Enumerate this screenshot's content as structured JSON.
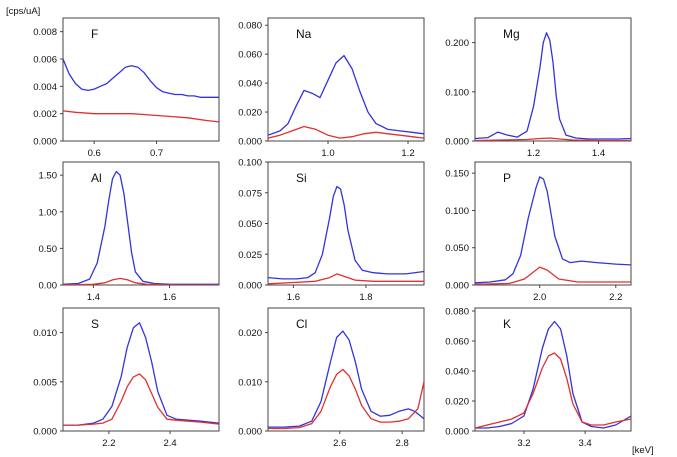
{
  "y_unit_label": "[cps/uA]",
  "x_unit_label": "[keV]",
  "colors": {
    "series_blue": "#3333dd",
    "series_red": "#e03030",
    "frame": "#444444"
  },
  "chart_data": [
    {
      "type": "line",
      "title": "F",
      "xlim": [
        0.55,
        0.8
      ],
      "ylim": [
        0,
        0.009
      ],
      "x_ticks": [
        "0.6",
        "0.7"
      ],
      "x_tick_values": [
        0.6,
        0.7
      ],
      "y_ticks": [
        "0.000",
        "0.002",
        "0.004",
        "0.006",
        "0.008"
      ],
      "y_tick_values": [
        0,
        0.002,
        0.004,
        0.006,
        0.008
      ],
      "series": [
        {
          "color": "blue",
          "x": [
            0.55,
            0.56,
            0.57,
            0.58,
            0.59,
            0.6,
            0.61,
            0.62,
            0.63,
            0.64,
            0.65,
            0.66,
            0.67,
            0.68,
            0.69,
            0.7,
            0.71,
            0.72,
            0.73,
            0.74,
            0.75,
            0.76,
            0.77,
            0.78,
            0.79,
            0.8
          ],
          "y": [
            0.006,
            0.0049,
            0.0042,
            0.0038,
            0.0037,
            0.0038,
            0.004,
            0.0042,
            0.0046,
            0.005,
            0.0054,
            0.0055,
            0.0054,
            0.005,
            0.0044,
            0.0039,
            0.0036,
            0.0035,
            0.0034,
            0.0034,
            0.0033,
            0.0033,
            0.0032,
            0.0032,
            0.0032,
            0.0032
          ]
        },
        {
          "color": "red",
          "x": [
            0.55,
            0.57,
            0.6,
            0.63,
            0.66,
            0.69,
            0.72,
            0.75,
            0.78,
            0.8
          ],
          "y": [
            0.0022,
            0.0021,
            0.002,
            0.002,
            0.002,
            0.0019,
            0.0018,
            0.0017,
            0.0015,
            0.0014
          ]
        }
      ]
    },
    {
      "type": "line",
      "title": "Na",
      "xlim": [
        0.85,
        1.24
      ],
      "ylim": [
        0,
        0.085
      ],
      "x_ticks": [
        "1.0",
        "1.2"
      ],
      "x_tick_values": [
        1.0,
        1.2
      ],
      "y_ticks": [
        "0.000",
        "0.020",
        "0.040",
        "0.060",
        "0.080"
      ],
      "y_tick_values": [
        0,
        0.02,
        0.04,
        0.06,
        0.08
      ],
      "series": [
        {
          "color": "blue",
          "x": [
            0.85,
            0.88,
            0.9,
            0.92,
            0.94,
            0.96,
            0.98,
            1.0,
            1.02,
            1.04,
            1.06,
            1.08,
            1.1,
            1.12,
            1.15,
            1.18,
            1.21,
            1.24
          ],
          "y": [
            0.004,
            0.007,
            0.012,
            0.024,
            0.035,
            0.033,
            0.03,
            0.042,
            0.054,
            0.059,
            0.05,
            0.034,
            0.02,
            0.012,
            0.008,
            0.007,
            0.006,
            0.005
          ]
        },
        {
          "color": "red",
          "x": [
            0.85,
            0.88,
            0.91,
            0.94,
            0.97,
            1.0,
            1.03,
            1.06,
            1.09,
            1.12,
            1.15,
            1.18,
            1.21,
            1.24
          ],
          "y": [
            0.002,
            0.004,
            0.007,
            0.01,
            0.008,
            0.004,
            0.002,
            0.003,
            0.005,
            0.006,
            0.005,
            0.004,
            0.003,
            0.002
          ]
        }
      ]
    },
    {
      "type": "line",
      "title": "Mg",
      "xlim": [
        1.02,
        1.5
      ],
      "ylim": [
        0,
        0.25
      ],
      "x_ticks": [
        "1.2",
        "1.4"
      ],
      "x_tick_values": [
        1.2,
        1.4
      ],
      "y_ticks": [
        "0.000",
        "0.100",
        "0.200"
      ],
      "y_tick_values": [
        0,
        0.1,
        0.2
      ],
      "series": [
        {
          "color": "blue",
          "x": [
            1.02,
            1.06,
            1.09,
            1.12,
            1.15,
            1.18,
            1.2,
            1.22,
            1.23,
            1.24,
            1.25,
            1.26,
            1.27,
            1.28,
            1.3,
            1.33,
            1.37,
            1.42,
            1.46,
            1.5
          ],
          "y": [
            0.005,
            0.007,
            0.018,
            0.012,
            0.008,
            0.02,
            0.07,
            0.15,
            0.2,
            0.22,
            0.205,
            0.16,
            0.09,
            0.045,
            0.012,
            0.006,
            0.004,
            0.004,
            0.004,
            0.005
          ]
        },
        {
          "color": "red",
          "x": [
            1.02,
            1.1,
            1.18,
            1.22,
            1.25,
            1.28,
            1.32,
            1.4,
            1.5
          ],
          "y": [
            0.001,
            0.002,
            0.003,
            0.005,
            0.006,
            0.004,
            0.002,
            0.001,
            0.001
          ]
        }
      ]
    },
    {
      "type": "line",
      "title": "Al",
      "xlim": [
        1.32,
        1.73
      ],
      "ylim": [
        0,
        1.68
      ],
      "x_ticks": [
        "1.4",
        "1.6"
      ],
      "x_tick_values": [
        1.4,
        1.6
      ],
      "y_ticks": [
        "0.00",
        "0.50",
        "1.00",
        "1.50"
      ],
      "y_tick_values": [
        0,
        0.5,
        1.0,
        1.5
      ],
      "series": [
        {
          "color": "blue",
          "x": [
            1.32,
            1.36,
            1.39,
            1.41,
            1.43,
            1.44,
            1.45,
            1.46,
            1.47,
            1.48,
            1.49,
            1.5,
            1.51,
            1.53,
            1.56,
            1.6,
            1.65,
            1.73
          ],
          "y": [
            0.01,
            0.02,
            0.08,
            0.3,
            0.8,
            1.15,
            1.45,
            1.55,
            1.5,
            1.25,
            0.85,
            0.45,
            0.18,
            0.05,
            0.02,
            0.01,
            0.01,
            0.01
          ]
        },
        {
          "color": "red",
          "x": [
            1.32,
            1.4,
            1.43,
            1.45,
            1.47,
            1.49,
            1.51,
            1.54,
            1.6,
            1.73
          ],
          "y": [
            0.0,
            0.01,
            0.03,
            0.07,
            0.09,
            0.07,
            0.03,
            0.01,
            0.0,
            0.0
          ]
        }
      ]
    },
    {
      "type": "line",
      "title": "Si",
      "xlim": [
        1.53,
        1.96
      ],
      "ylim": [
        0,
        0.1
      ],
      "x_ticks": [
        "1.6",
        "1.8"
      ],
      "x_tick_values": [
        1.6,
        1.8
      ],
      "y_ticks": [
        "0.000",
        "0.025",
        "0.050",
        "0.075",
        "0.100"
      ],
      "y_tick_values": [
        0,
        0.025,
        0.05,
        0.075,
        0.1
      ],
      "series": [
        {
          "color": "blue",
          "x": [
            1.53,
            1.57,
            1.61,
            1.64,
            1.66,
            1.68,
            1.7,
            1.71,
            1.72,
            1.73,
            1.74,
            1.75,
            1.77,
            1.79,
            1.82,
            1.86,
            1.91,
            1.96
          ],
          "y": [
            0.006,
            0.005,
            0.005,
            0.006,
            0.01,
            0.025,
            0.055,
            0.072,
            0.08,
            0.078,
            0.065,
            0.045,
            0.02,
            0.012,
            0.01,
            0.009,
            0.009,
            0.011
          ]
        },
        {
          "color": "red",
          "x": [
            1.53,
            1.6,
            1.66,
            1.7,
            1.72,
            1.74,
            1.77,
            1.82,
            1.88,
            1.96
          ],
          "y": [
            0.001,
            0.002,
            0.003,
            0.006,
            0.009,
            0.007,
            0.004,
            0.003,
            0.003,
            0.003
          ]
        }
      ]
    },
    {
      "type": "line",
      "title": "P",
      "xlim": [
        1.83,
        2.24
      ],
      "ylim": [
        0,
        0.165
      ],
      "x_ticks": [
        "2.0",
        "2.2"
      ],
      "x_tick_values": [
        2.0,
        2.2
      ],
      "y_ticks": [
        "0.000",
        "0.050",
        "0.100",
        "0.150"
      ],
      "y_tick_values": [
        0,
        0.05,
        0.1,
        0.15
      ],
      "series": [
        {
          "color": "blue",
          "x": [
            1.83,
            1.87,
            1.91,
            1.93,
            1.95,
            1.97,
            1.99,
            2.0,
            2.01,
            2.02,
            2.03,
            2.04,
            2.06,
            2.08,
            2.11,
            2.15,
            2.2,
            2.24
          ],
          "y": [
            0.003,
            0.004,
            0.007,
            0.015,
            0.04,
            0.09,
            0.13,
            0.145,
            0.142,
            0.125,
            0.095,
            0.065,
            0.035,
            0.03,
            0.032,
            0.03,
            0.028,
            0.027
          ]
        },
        {
          "color": "red",
          "x": [
            1.83,
            1.92,
            1.96,
            1.99,
            2.0,
            2.02,
            2.05,
            2.1,
            2.17,
            2.24
          ],
          "y": [
            0.001,
            0.002,
            0.008,
            0.02,
            0.024,
            0.02,
            0.008,
            0.004,
            0.004,
            0.004
          ]
        }
      ]
    },
    {
      "type": "line",
      "title": "S",
      "xlim": [
        2.05,
        2.56
      ],
      "ylim": [
        0,
        0.0125
      ],
      "x_ticks": [
        "2.2",
        "2.4"
      ],
      "x_tick_values": [
        2.2,
        2.4
      ],
      "y_ticks": [
        "0.000",
        "0.005",
        "0.010"
      ],
      "y_tick_values": [
        0,
        0.005,
        0.01
      ],
      "series": [
        {
          "color": "blue",
          "x": [
            2.05,
            2.1,
            2.15,
            2.18,
            2.21,
            2.24,
            2.26,
            2.28,
            2.3,
            2.32,
            2.34,
            2.36,
            2.39,
            2.42,
            2.46,
            2.5,
            2.56
          ],
          "y": [
            0.0006,
            0.0006,
            0.0008,
            0.0012,
            0.0025,
            0.0055,
            0.0085,
            0.0105,
            0.011,
            0.0095,
            0.007,
            0.004,
            0.0016,
            0.0012,
            0.0011,
            0.001,
            0.0008
          ]
        },
        {
          "color": "red",
          "x": [
            2.05,
            2.1,
            2.15,
            2.18,
            2.21,
            2.24,
            2.26,
            2.28,
            2.3,
            2.32,
            2.34,
            2.36,
            2.39,
            2.42,
            2.46,
            2.5,
            2.56
          ],
          "y": [
            0.0006,
            0.0006,
            0.0007,
            0.0008,
            0.0012,
            0.003,
            0.0045,
            0.0055,
            0.0058,
            0.0052,
            0.0038,
            0.0024,
            0.0012,
            0.0011,
            0.001,
            0.0009,
            0.0007
          ]
        }
      ]
    },
    {
      "type": "line",
      "title": "Cl",
      "xlim": [
        2.37,
        2.87
      ],
      "ylim": [
        0,
        0.025
      ],
      "x_ticks": [
        "2.6",
        "2.8"
      ],
      "x_tick_values": [
        2.6,
        2.8
      ],
      "y_ticks": [
        "0.000",
        "0.010",
        "0.020"
      ],
      "y_tick_values": [
        0,
        0.01,
        0.02
      ],
      "series": [
        {
          "color": "blue",
          "x": [
            2.37,
            2.42,
            2.47,
            2.51,
            2.54,
            2.57,
            2.59,
            2.61,
            2.63,
            2.65,
            2.67,
            2.7,
            2.73,
            2.76,
            2.79,
            2.82,
            2.84,
            2.87
          ],
          "y": [
            0.0008,
            0.0008,
            0.001,
            0.002,
            0.006,
            0.014,
            0.019,
            0.0203,
            0.0185,
            0.014,
            0.0085,
            0.004,
            0.003,
            0.0032,
            0.004,
            0.0045,
            0.004,
            0.0025
          ]
        },
        {
          "color": "red",
          "x": [
            2.37,
            2.42,
            2.47,
            2.51,
            2.54,
            2.57,
            2.59,
            2.61,
            2.63,
            2.65,
            2.67,
            2.7,
            2.73,
            2.76,
            2.79,
            2.82,
            2.85,
            2.87
          ],
          "y": [
            0.0005,
            0.0005,
            0.0007,
            0.0015,
            0.004,
            0.009,
            0.0115,
            0.0125,
            0.0112,
            0.0085,
            0.0052,
            0.0025,
            0.0018,
            0.0018,
            0.002,
            0.0025,
            0.0045,
            0.01
          ]
        }
      ]
    },
    {
      "type": "line",
      "title": "K",
      "xlim": [
        3.04,
        3.55
      ],
      "ylim": [
        0,
        0.082
      ],
      "x_ticks": [
        "3.2",
        "3.4"
      ],
      "x_tick_values": [
        3.2,
        3.4
      ],
      "y_ticks": [
        "0.000",
        "0.020",
        "0.040",
        "0.060",
        "0.080"
      ],
      "y_tick_values": [
        0,
        0.02,
        0.04,
        0.06,
        0.08
      ],
      "series": [
        {
          "color": "blue",
          "x": [
            3.04,
            3.08,
            3.12,
            3.16,
            3.2,
            3.23,
            3.26,
            3.28,
            3.3,
            3.32,
            3.34,
            3.36,
            3.39,
            3.42,
            3.46,
            3.5,
            3.55
          ],
          "y": [
            0.002,
            0.002,
            0.003,
            0.005,
            0.01,
            0.028,
            0.055,
            0.068,
            0.073,
            0.068,
            0.05,
            0.025,
            0.006,
            0.003,
            0.002,
            0.004,
            0.01
          ]
        },
        {
          "color": "red",
          "x": [
            3.04,
            3.08,
            3.12,
            3.16,
            3.2,
            3.23,
            3.26,
            3.28,
            3.3,
            3.32,
            3.34,
            3.36,
            3.39,
            3.42,
            3.46,
            3.5,
            3.55
          ],
          "y": [
            0.002,
            0.004,
            0.006,
            0.008,
            0.012,
            0.025,
            0.042,
            0.05,
            0.052,
            0.048,
            0.035,
            0.018,
            0.006,
            0.004,
            0.004,
            0.006,
            0.008
          ]
        }
      ]
    }
  ]
}
